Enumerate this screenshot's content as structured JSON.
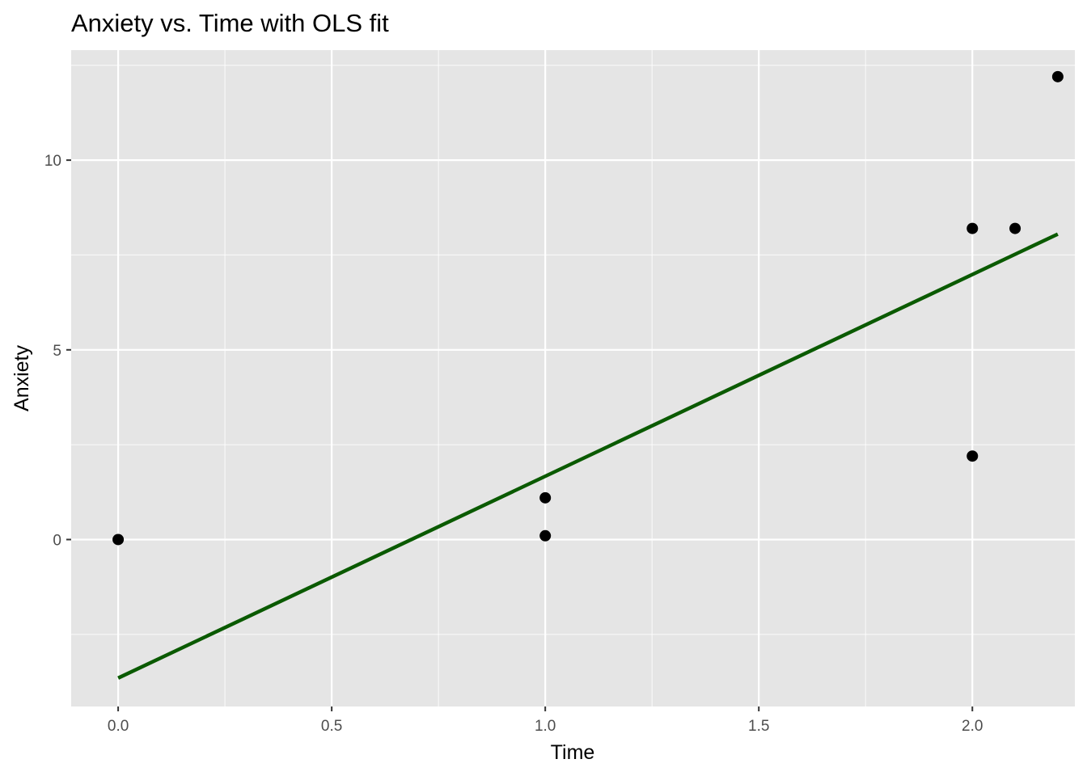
{
  "chart_data": {
    "type": "scatter",
    "title": "Anxiety vs. Time with OLS fit",
    "xlabel": "Time",
    "ylabel": "Anxiety",
    "xlim": [
      -0.11,
      2.24
    ],
    "ylim": [
      -4.4,
      12.9
    ],
    "x_ticks": [
      0.0,
      0.5,
      1.0,
      1.5,
      2.0
    ],
    "x_tick_labels": [
      "0.0",
      "0.5",
      "1.0",
      "1.5",
      "2.0"
    ],
    "y_ticks": [
      0,
      5,
      10
    ],
    "y_tick_labels": [
      "0",
      "5",
      "10"
    ],
    "grid": true,
    "background": "#e5e5e5",
    "grid_color": "#ffffff",
    "points": [
      {
        "x": 0.0,
        "y": 0.0
      },
      {
        "x": 1.0,
        "y": 0.1
      },
      {
        "x": 1.0,
        "y": 1.1
      },
      {
        "x": 2.0,
        "y": 2.2
      },
      {
        "x": 2.0,
        "y": 8.2
      },
      {
        "x": 2.1,
        "y": 8.2
      },
      {
        "x": 2.2,
        "y": 12.2
      }
    ],
    "point_color": "#000000",
    "fit_line": {
      "label": "OLS fit",
      "x": [
        0.0,
        2.2
      ],
      "y": [
        -3.65,
        8.05
      ],
      "color": "#0a5a00"
    }
  }
}
